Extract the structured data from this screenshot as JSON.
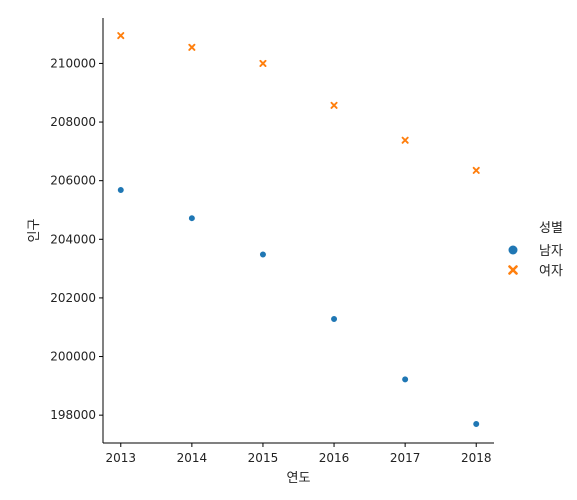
{
  "chart_data": {
    "type": "scatter",
    "title": "",
    "xlabel": "연도",
    "ylabel": "인구",
    "x": [
      2013,
      2014,
      2015,
      2016,
      2017,
      2018
    ],
    "xticks": [
      "2013",
      "2014",
      "2015",
      "2016",
      "2017",
      "2018"
    ],
    "yticks": [
      "198000",
      "200000",
      "202000",
      "204000",
      "206000",
      "208000",
      "210000"
    ],
    "xlim": [
      2012.75,
      2018.25
    ],
    "ylim": [
      197050,
      211550
    ],
    "legend_title": "성별",
    "legend_position": "right",
    "grid": false,
    "series": [
      {
        "name": "남자",
        "marker": "circle",
        "color": "#1f77b4",
        "values": [
          205680,
          204720,
          203480,
          201280,
          199220,
          197700
        ]
      },
      {
        "name": "여자",
        "marker": "x",
        "color": "#ff7f0e",
        "values": [
          210950,
          210550,
          210000,
          208570,
          207380,
          206350
        ]
      }
    ]
  }
}
